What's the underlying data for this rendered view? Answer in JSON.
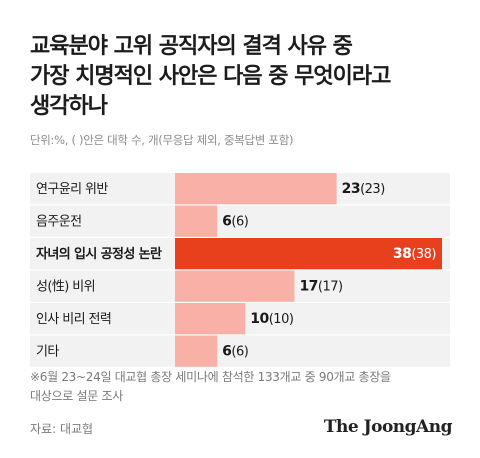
{
  "title_lines": [
    "교육분야 고위 공직자의 결격 사유 중",
    "가장 치명적인 사안은 다음 중 무엇이라고",
    "생각하나"
  ],
  "subtitle": "단위:%, ( )안은 대학 수, 개(무응답 제외, 중복답변 포함)",
  "note_lines": [
    "※6월 23~24일 대교협 총장 세미나에 참석한 133개교 중 90개교 총장을",
    "대상으로 설문 조사"
  ],
  "source": "자료: 대교협",
  "logo": "The JoongAng",
  "colors": {
    "bar": "#f9b0a6",
    "highlight": "#e8401c",
    "row_bg": "#f2f2f2"
  },
  "chart_data": {
    "type": "bar",
    "orientation": "horizontal",
    "categories": [
      "연구윤리 위반",
      "음주운전",
      "자녀의 입시 공정성 논란",
      "성(性) 비위",
      "인사 비리 전력",
      "기타"
    ],
    "values": [
      23,
      6,
      38,
      17,
      10,
      6
    ],
    "counts": [
      "(23)",
      "(6)",
      "(38)",
      "(17)",
      "(10)",
      "(6)"
    ],
    "highlight_index": 2,
    "xlim": [
      0,
      38
    ],
    "grid": false,
    "legend": "none"
  }
}
